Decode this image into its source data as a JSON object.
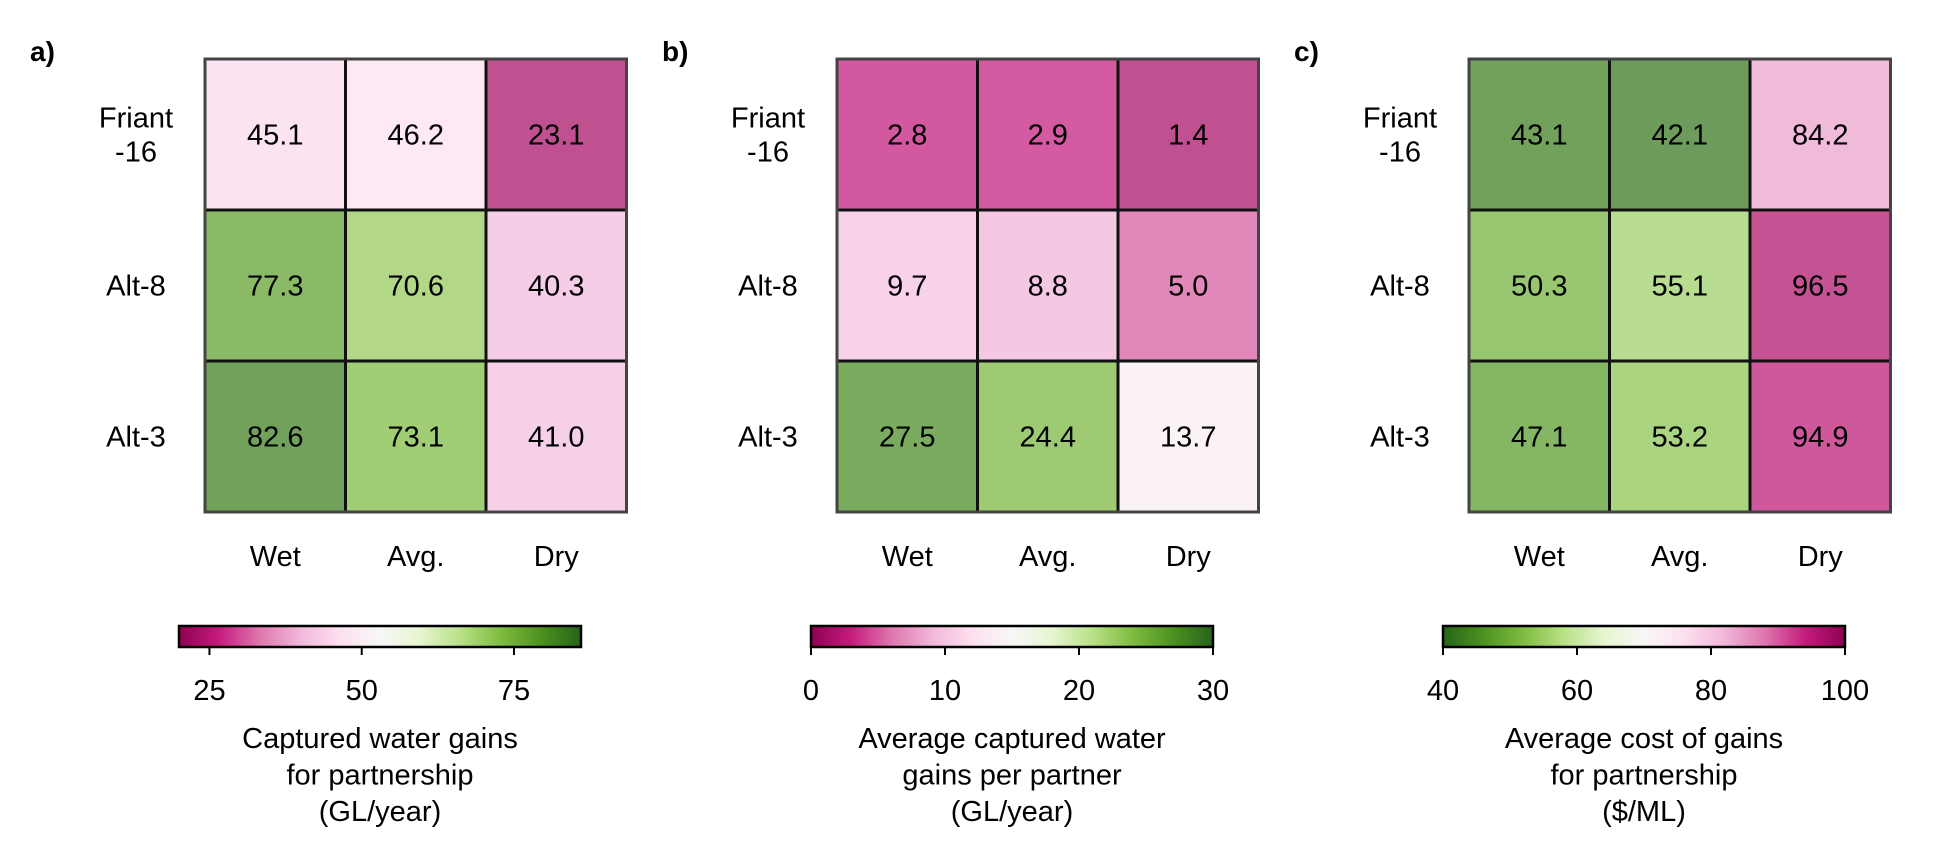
{
  "chart_data": [
    {
      "type": "heatmap",
      "panel_label": "a)",
      "rows": [
        "Friant\n-16",
        "Alt-8",
        "Alt-3"
      ],
      "columns": [
        "Wet",
        "Avg.",
        "Dry"
      ],
      "values": [
        [
          45.1,
          46.2,
          23.1
        ],
        [
          77.3,
          70.6,
          40.3
        ],
        [
          82.6,
          73.1,
          41.0
        ]
      ],
      "colormap": "PiYG",
      "vmin": 20,
      "vmax": 86,
      "colorbar_ticks": [
        25,
        50,
        75
      ],
      "colorbar_label": [
        "Captured water gains",
        "for partnership",
        "(GL/year)"
      ]
    },
    {
      "type": "heatmap",
      "panel_label": "b)",
      "rows": [
        "Friant\n-16",
        "Alt-8",
        "Alt-3"
      ],
      "columns": [
        "Wet",
        "Avg.",
        "Dry"
      ],
      "values": [
        [
          2.8,
          2.9,
          1.4
        ],
        [
          9.7,
          8.8,
          5.0
        ],
        [
          27.5,
          24.4,
          13.7
        ]
      ],
      "colormap": "PiYG",
      "vmin": 0,
      "vmax": 30,
      "colorbar_ticks": [
        0,
        10,
        20,
        30
      ],
      "colorbar_label": [
        "Average captured water",
        "gains per partner",
        "(GL/year)"
      ]
    },
    {
      "type": "heatmap",
      "panel_label": "c)",
      "rows": [
        "Friant\n-16",
        "Alt-8",
        "Alt-3"
      ],
      "columns": [
        "Wet",
        "Avg.",
        "Dry"
      ],
      "values": [
        [
          43.1,
          42.1,
          84.2
        ],
        [
          50.3,
          55.1,
          96.5
        ],
        [
          47.1,
          53.2,
          94.9
        ]
      ],
      "colormap": "PiYG_r",
      "vmin": 40,
      "vmax": 100,
      "colorbar_ticks": [
        40,
        60,
        80,
        100
      ],
      "colorbar_label": [
        "Average cost of gains",
        "for partnership",
        "($/ML)"
      ]
    }
  ]
}
